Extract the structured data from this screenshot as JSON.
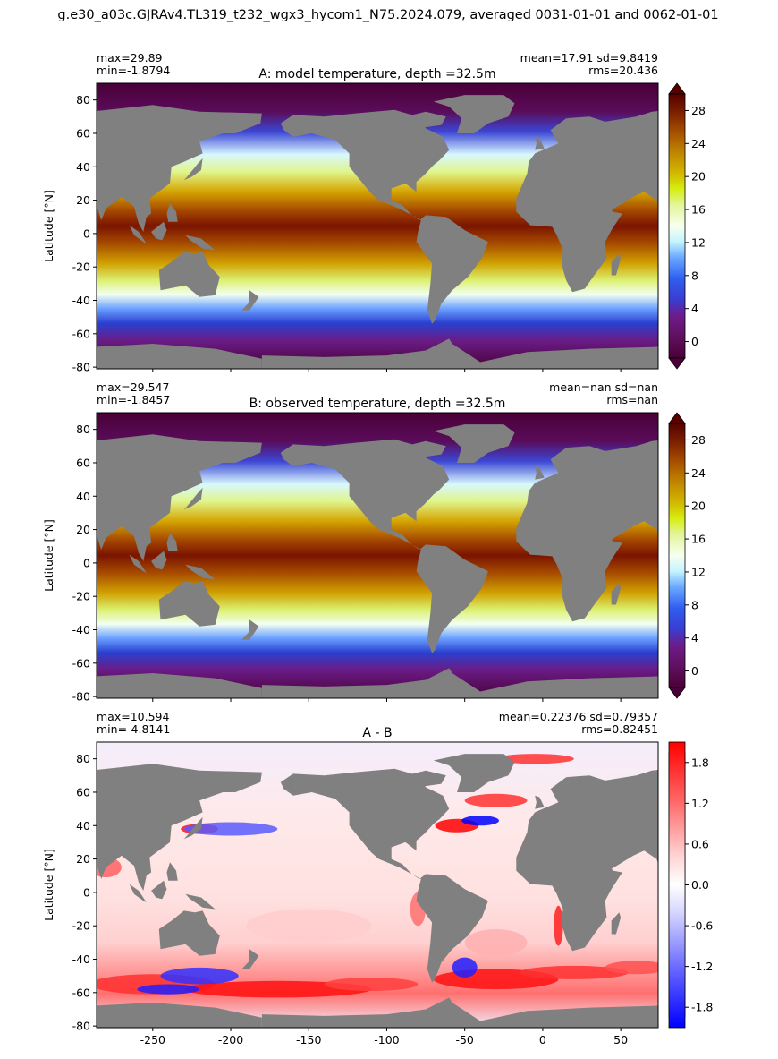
{
  "figure_title": "g.e30_a03c.GJRAv4.TL319_t232_wgx3_hycom1_N75.2024.079, averaged 0031-01-01 and 0062-01-01",
  "colors": {
    "land": "#808080",
    "temperature_scale": [
      "#4a0038",
      "#5e0a5a",
      "#701c86",
      "#4a2fb8",
      "#2a52e0",
      "#3c78ff",
      "#78b4ff",
      "#bff2ff",
      "#f6ffe8",
      "#e4f7a0",
      "#d4ef20",
      "#d2c000",
      "#c89000",
      "#b86a00",
      "#a04800",
      "#852800",
      "#6a0a00",
      "#580000"
    ],
    "difference_scale": [
      "#0000ff",
      "#5555ff",
      "#9a9aff",
      "#d8d8ff",
      "#ffffff",
      "#ffd8d8",
      "#ff9a9a",
      "#ff5555",
      "#ff0000"
    ]
  },
  "chart_data": [
    {
      "type": "heatmap",
      "id": "A",
      "title": "A: model temperature, depth =32.5m",
      "stats_left": [
        "max=29.89",
        "min=-1.8794"
      ],
      "stats_right": [
        "mean=17.91 sd=9.8419",
        "rms=20.436"
      ],
      "ylabel": "Latitude [°N]",
      "xlabel": "",
      "xlim": [
        -286,
        74
      ],
      "ylim": [
        -81,
        90
      ],
      "yticks": [
        80,
        60,
        40,
        20,
        0,
        -20,
        -40,
        -60,
        -80
      ],
      "xticks": [],
      "colorbar": {
        "range": [
          -2,
          30
        ],
        "ticks": [
          0,
          4,
          8,
          12,
          16,
          20,
          24,
          28
        ],
        "extend": "both",
        "scale": "temperature_scale"
      },
      "max": 29.89,
      "min": -1.8794
    },
    {
      "type": "heatmap",
      "id": "B",
      "title": "B: observed temperature, depth =32.5m",
      "stats_left": [
        "max=29.547",
        "min=-1.8457"
      ],
      "stats_right": [
        "mean=nan sd=nan",
        "rms=nan"
      ],
      "ylabel": "Latitude [°N]",
      "xlabel": "",
      "xlim": [
        -286,
        74
      ],
      "ylim": [
        -81,
        90
      ],
      "yticks": [
        80,
        60,
        40,
        20,
        0,
        -20,
        -40,
        -60,
        -80
      ],
      "xticks": [],
      "colorbar": {
        "range": [
          -2,
          30
        ],
        "ticks": [
          0,
          4,
          8,
          12,
          16,
          20,
          24,
          28
        ],
        "extend": "both",
        "scale": "temperature_scale"
      },
      "max": 29.547,
      "min": -1.8457
    },
    {
      "type": "heatmap",
      "id": "A-B",
      "title": "A - B",
      "stats_left": [
        "max=10.594",
        "min=-4.8141"
      ],
      "stats_right": [
        "mean=0.22376 sd=0.79357",
        "rms=0.82451"
      ],
      "ylabel": "Latitude [°N]",
      "xlabel": "",
      "xlim": [
        -286,
        74
      ],
      "ylim": [
        -81,
        90
      ],
      "yticks": [
        80,
        60,
        40,
        20,
        0,
        -20,
        -40,
        -60,
        -80
      ],
      "xticks": [
        -250,
        -200,
        -150,
        -100,
        -50,
        0,
        50
      ],
      "colorbar": {
        "range": [
          -2.1,
          2.1
        ],
        "ticks": [
          1.8,
          1.2,
          0.6,
          0.0,
          -0.6,
          -1.2,
          -1.8
        ],
        "extend": "neither",
        "scale": "difference_scale"
      },
      "max": 10.594,
      "min": -4.8141
    }
  ]
}
